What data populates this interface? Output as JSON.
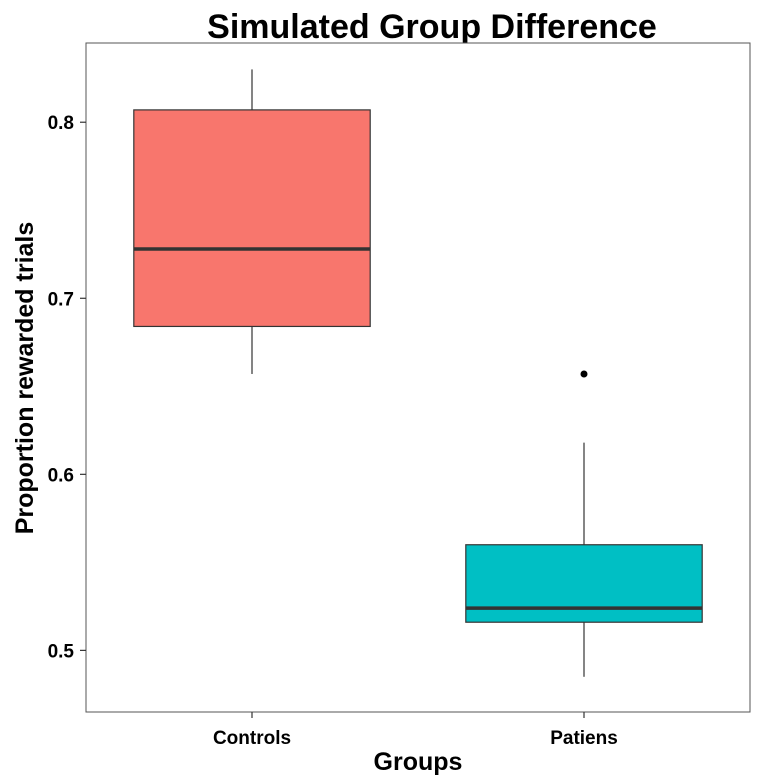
{
  "chart_data": {
    "type": "boxplot",
    "title": "Simulated Group Difference",
    "xlabel": "Groups",
    "ylabel": "Proportion rewarded trials",
    "categories": [
      "Controls",
      "Patiens"
    ],
    "ylim": [
      0.465,
      0.845
    ],
    "yticks": [
      0.5,
      0.6,
      0.7,
      0.8
    ],
    "ytick_labels": [
      "0.5",
      "0.6",
      "0.7",
      "0.8"
    ],
    "boxes": [
      {
        "category": "Controls",
        "whisker_low": 0.657,
        "q1": 0.684,
        "median": 0.728,
        "q3": 0.807,
        "whisker_high": 0.83,
        "outliers": [],
        "fill": "#F8766D"
      },
      {
        "category": "Patiens",
        "whisker_low": 0.485,
        "q1": 0.516,
        "median": 0.524,
        "q3": 0.56,
        "whisker_high": 0.618,
        "outliers": [
          0.657
        ],
        "fill": "#00BFC4"
      }
    ],
    "grid": false,
    "legend": "none"
  }
}
